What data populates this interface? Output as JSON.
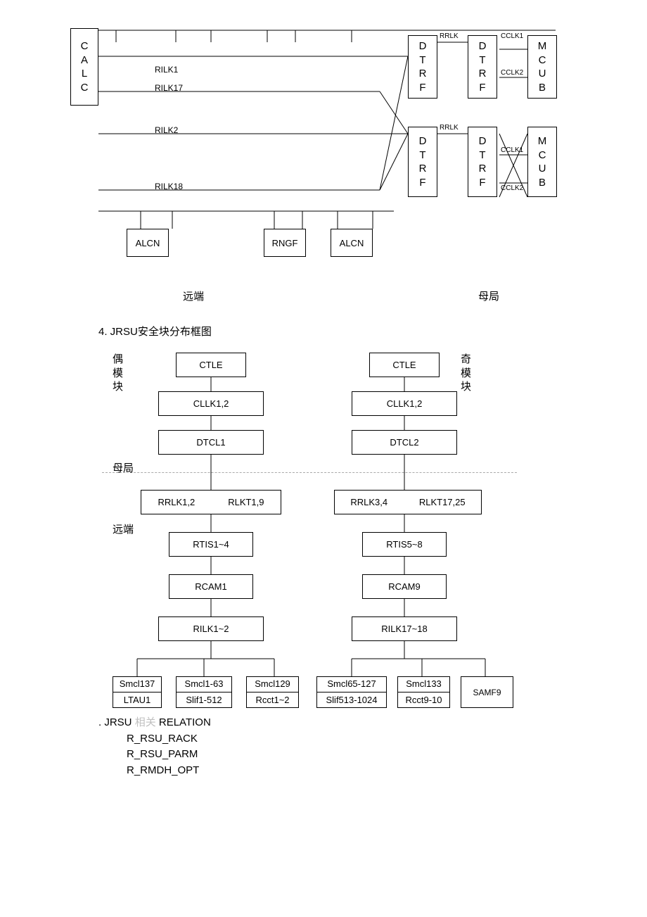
{
  "colors": {
    "line": "#000000",
    "bg": "#ffffff",
    "dashed": "#aaaaaa",
    "text": "#000000",
    "rel_dim": "#c0c0c0"
  },
  "d1": {
    "boxes": {
      "calc1": "C\nA\nL\nC",
      "calc2": "C\nA\nL\nC",
      "rilk1": "RILK1",
      "rilk17": "RILK17",
      "rilk2": "RILK2",
      "rilk18": "RILK18",
      "alcn1": "ALCN",
      "rngf": "RNGF",
      "alcn2": "ALCN",
      "dtrf1": "D\nT\nR\nF",
      "dtrf2": "D\nT\nR\nF",
      "dtrf3": "D\nT\nR\nF",
      "dtrf4": "D\nT\nR\nF",
      "mcub1": "M\nC\nU\nB",
      "mcub2": "M\nC\nU\nB"
    },
    "labels": {
      "rrlk": "RRLK",
      "cclk1": "CCLK1",
      "cclk2": "CCLK2"
    },
    "bottom": {
      "left": "远端",
      "right": "母局"
    }
  },
  "heading": "4.  JRSU安全块分布框图",
  "d2": {
    "side": {
      "even": "偶\n模\n块",
      "odd": "奇\n模\n块",
      "muju": "母局",
      "yuanduan": "远端"
    },
    "left": {
      "ctle": "CTLE",
      "cllk": "CLLK1,2",
      "dtcl": "DTCL1",
      "rrlk": "RRLK1,2",
      "rlkt": "RLKT1,9",
      "rtis": "RTIS1~4",
      "rcam": "RCAM1",
      "rilk": "RILK1~2",
      "b1_top": "Smcl137",
      "b1_bot": "LTAU1",
      "b2_top": "Smcl1-63",
      "b2_bot": "Slif1-512",
      "b3_top": "Smcl129",
      "b3_bot": "Rcct1~2"
    },
    "right": {
      "ctle": "CTLE",
      "cllk": "CLLK1,2",
      "dtcl": "DTCL2",
      "rrlk": "RRLK3,4",
      "rlkt": "RLKT17,25",
      "rtis": "RTIS5~8",
      "rcam": "RCAM9",
      "rilk": "RILK17~18",
      "b1_top": "Smcl65-127",
      "b1_bot": "Slif513-1024",
      "b2_top": "Smcl133",
      "b2_bot": "Rcct9-10",
      "b3": "SAMF9"
    }
  },
  "relations": {
    "title_pre": ".   JRSU ",
    "title_dim": "相关",
    "title_post": " RELATION",
    "items": [
      "R_RSU_RACK",
      "R_RSU_PARM",
      "R_RMDH_OPT"
    ]
  }
}
